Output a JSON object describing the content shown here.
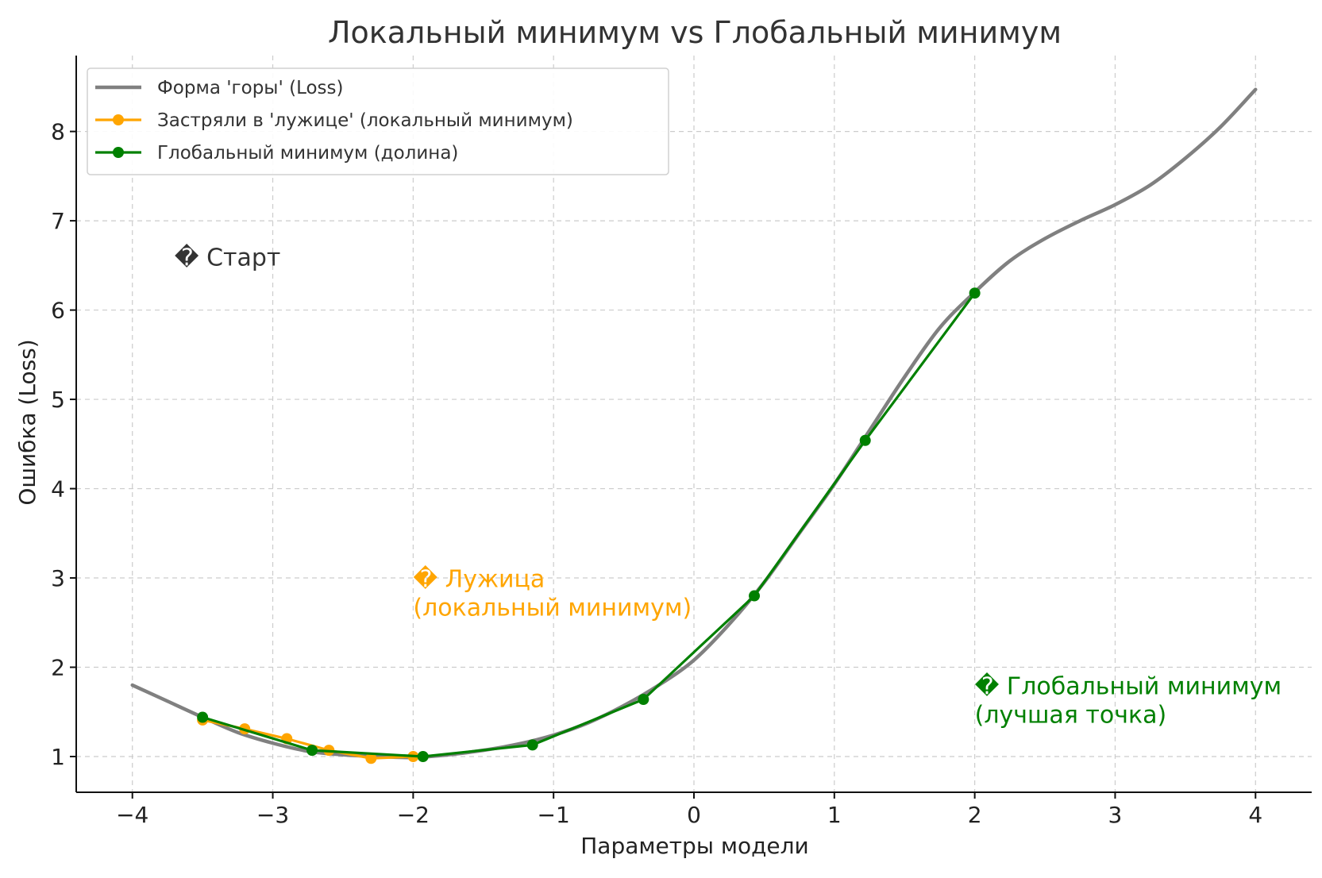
{
  "chart_data": {
    "type": "line",
    "title": "Локальный минимум vs Глобальный минимум",
    "xlabel": "Параметры модели",
    "ylabel": "Ошибка (Loss)",
    "xlim": [
      -4.4,
      4.4
    ],
    "ylim": [
      0.6,
      8.85
    ],
    "x_ticks": [
      -4,
      -3,
      -2,
      -1,
      0,
      1,
      2,
      3,
      4
    ],
    "x_tick_labels": [
      "−4",
      "−3",
      "−2",
      "−1",
      "0",
      "1",
      "2",
      "3",
      "4"
    ],
    "y_ticks": [
      1,
      2,
      3,
      4,
      5,
      6,
      7,
      8
    ],
    "y_tick_labels": [
      "1",
      "2",
      "3",
      "4",
      "5",
      "6",
      "7",
      "8"
    ],
    "grid": true,
    "legend_position": "top-left",
    "series": [
      {
        "name": "Форма 'горы' (Loss)",
        "color": "#808080",
        "marker": false,
        "x": [
          -4.0,
          -3.75,
          -3.5,
          -3.25,
          -3.0,
          -2.75,
          -2.5,
          -2.25,
          -2.0,
          -1.75,
          -1.5,
          -1.25,
          -1.0,
          -0.75,
          -0.5,
          -0.25,
          0.0,
          0.25,
          0.5,
          0.75,
          1.0,
          1.25,
          1.5,
          1.75,
          2.0,
          2.25,
          2.5,
          2.75,
          3.0,
          3.25,
          3.5,
          3.75,
          4.0
        ],
        "y": [
          1.8,
          1.62,
          1.44,
          1.27,
          1.15,
          1.06,
          1.02,
          1.0,
          0.99,
          1.02,
          1.07,
          1.14,
          1.24,
          1.38,
          1.57,
          1.8,
          2.08,
          2.48,
          2.95,
          3.5,
          4.05,
          4.65,
          5.25,
          5.8,
          6.2,
          6.55,
          6.8,
          7.0,
          7.18,
          7.4,
          7.7,
          8.05,
          8.47
        ]
      },
      {
        "name": "Застряли в 'лужице' (локальный минимум)",
        "color": "#FFA500",
        "marker": true,
        "x": [
          -3.5,
          -3.2,
          -2.9,
          -2.6,
          -2.3,
          -2.0
        ],
        "y": [
          1.41,
          1.31,
          1.2,
          1.07,
          0.98,
          1.0
        ]
      },
      {
        "name": "Глобальный минимум (долина)",
        "color": "#008000",
        "marker": true,
        "x": [
          -3.5,
          -2.72,
          -1.93,
          -1.15,
          -0.36,
          0.43,
          1.22,
          2.0
        ],
        "y": [
          1.44,
          1.07,
          1.0,
          1.13,
          1.64,
          2.8,
          4.54,
          6.19
        ]
      }
    ],
    "annotations": [
      {
        "text_lines": [
          "� Старт"
        ],
        "x": -3.7,
        "y": 6.5,
        "color": "#333333"
      },
      {
        "text_lines": [
          "� Лужица",
          "(локальный минимум)"
        ],
        "x": -2.0,
        "y": 2.9,
        "color": "#FFA500"
      },
      {
        "text_lines": [
          "� Глобальный минимум",
          "(лучшая точка)"
        ],
        "x": 2.0,
        "y": 1.7,
        "color": "#008000"
      }
    ]
  }
}
